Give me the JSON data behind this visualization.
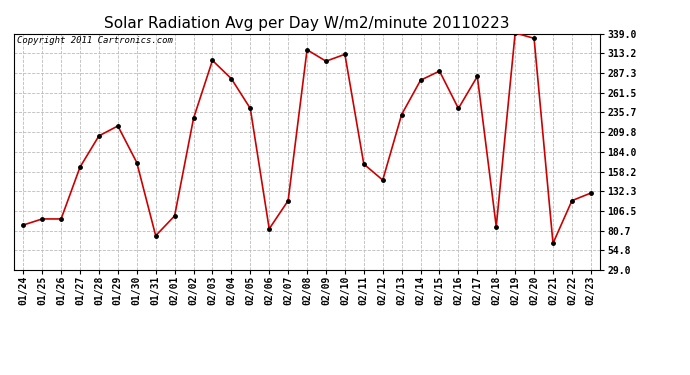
{
  "title": "Solar Radiation Avg per Day W/m2/minute 20110223",
  "copyright": "Copyright 2011 Cartronics.com",
  "labels": [
    "01/24",
    "01/25",
    "01/26",
    "01/27",
    "01/28",
    "01/29",
    "01/30",
    "01/31",
    "02/01",
    "02/02",
    "02/03",
    "02/04",
    "02/05",
    "02/06",
    "02/07",
    "02/08",
    "02/09",
    "02/10",
    "02/11",
    "02/12",
    "02/13",
    "02/14",
    "02/15",
    "02/16",
    "02/17",
    "02/18",
    "02/19",
    "02/20",
    "02/21",
    "02/22",
    "02/23"
  ],
  "values": [
    88,
    96,
    96,
    164,
    205,
    218,
    170,
    74,
    100,
    228,
    304,
    280,
    241,
    83,
    120,
    318,
    303,
    312,
    168,
    147,
    233,
    278,
    290,
    241,
    283,
    86,
    340,
    333,
    64,
    120,
    130
  ],
  "ylim": [
    29.0,
    339.0
  ],
  "yticks": [
    29.0,
    54.8,
    80.7,
    106.5,
    132.3,
    158.2,
    184.0,
    209.8,
    235.7,
    261.5,
    287.3,
    313.2,
    339.0
  ],
  "line_color": "#cc0000",
  "marker_color": "#000000",
  "bg_color": "#ffffff",
  "grid_color": "#bbbbbb",
  "title_fontsize": 11,
  "tick_fontsize": 7,
  "copyright_fontsize": 6.5
}
